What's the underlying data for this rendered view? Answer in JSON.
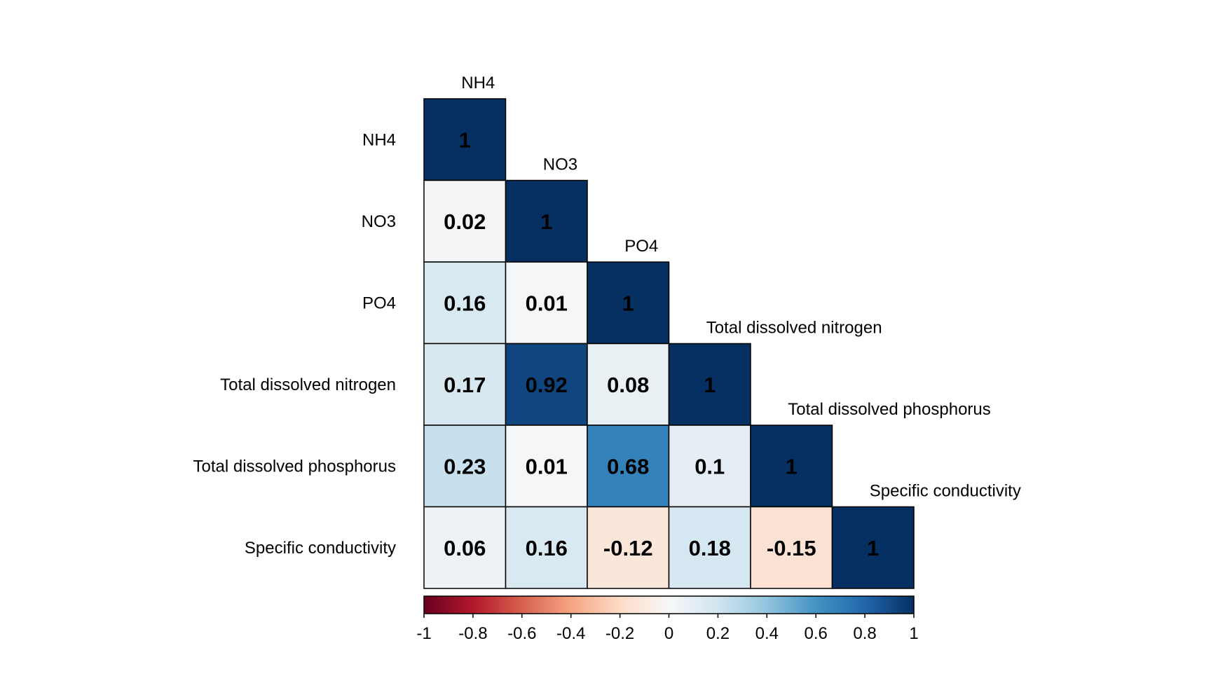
{
  "chart_data": {
    "type": "heatmap",
    "variables": [
      "NH4",
      "NO3",
      "PO4",
      "Total dissolved nitrogen",
      "Total dissolved phosphorus",
      "Specific conductivity"
    ],
    "matrix_lower": [
      [
        1
      ],
      [
        0.02,
        1
      ],
      [
        0.16,
        0.01,
        1
      ],
      [
        0.17,
        0.92,
        0.08,
        1
      ],
      [
        0.23,
        0.01,
        0.68,
        0.1,
        1
      ],
      [
        0.06,
        0.16,
        -0.12,
        0.18,
        -0.15,
        1
      ]
    ],
    "colorbar": {
      "range": [
        -1,
        1
      ],
      "ticks": [
        -1,
        -0.8,
        -0.6,
        -0.4,
        -0.2,
        0,
        0.2,
        0.4,
        0.6,
        0.8,
        1
      ],
      "tick_labels": [
        "-1",
        "-0.8",
        "-0.6",
        "-0.4",
        "-0.2",
        "0",
        "0.2",
        "0.4",
        "0.6",
        "0.8",
        "1"
      ]
    },
    "colors": {
      "neg_end": "#67001f",
      "mid": "#f7f7f7",
      "pos_end": "#053061",
      "cell_border": "#000000",
      "text": "#000000"
    }
  }
}
